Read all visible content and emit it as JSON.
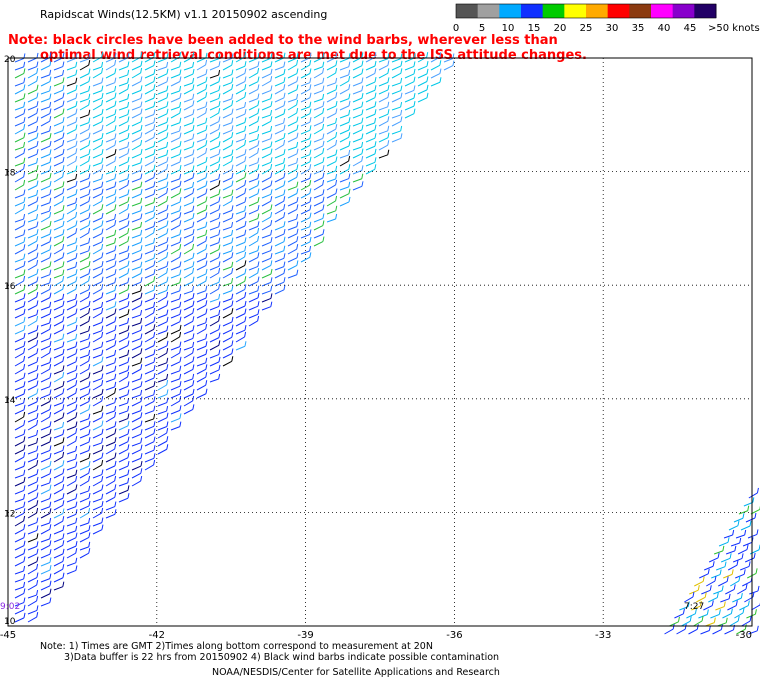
{
  "header": {
    "title": "Rapidscat Winds(12.5KM) v1.1 20150902 ascending",
    "note_line1": "Note: black circles have been added to the wind barbs, wherever less than",
    "note_line2": "optimal wind retrieval conditions are met due to the ISS attitude changes."
  },
  "legend": {
    "unit": "knots",
    "labels": [
      "0",
      "5",
      "10",
      "15",
      "20",
      "25",
      "30",
      "35",
      "40",
      "45",
      ">50 knots"
    ],
    "colors": [
      "#555555",
      "#a0a0a0",
      "#00aaff",
      "#1030ff",
      "#00cc00",
      "#ffff00",
      "#ffaa00",
      "#ff0000",
      "#8b3a10",
      "#ff00ff",
      "#8800cc",
      "#220066"
    ]
  },
  "map": {
    "lon_ticks": [
      "-45",
      "-42",
      "-39",
      "-36",
      "-33",
      "-30"
    ],
    "lat_ticks": [
      "20",
      "18",
      "16",
      "14",
      "12",
      "10"
    ],
    "time_labels": [
      "9:02",
      "7:27"
    ]
  },
  "footer": {
    "note_line1": "Note: 1) Times are GMT 2)Times along bottom correspond to measurement at 20N",
    "note_line2": "3)Data buffer is 22 hrs from 20150902 4) Black wind barbs indicate possible contamination",
    "credit": "NOAA/NESDIS/Center for Satellite Applications and Research"
  }
}
